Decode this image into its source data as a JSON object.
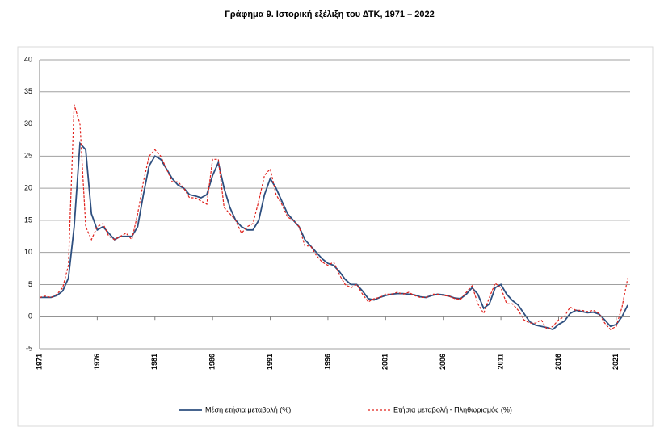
{
  "chart_data": {
    "type": "line",
    "title": "Γράφημα 9. Ιστορική εξέλιξη του ΔΤΚ, 1971 – 2022",
    "x": [
      1971,
      1971.5,
      1972,
      1972.5,
      1973,
      1973.5,
      1974,
      1974.5,
      1975,
      1975.5,
      1976,
      1976.5,
      1977,
      1977.5,
      1978,
      1978.5,
      1979,
      1979.5,
      1980,
      1980.5,
      1981,
      1981.5,
      1982,
      1982.5,
      1983,
      1983.5,
      1984,
      1984.5,
      1985,
      1985.5,
      1986,
      1986.5,
      1987,
      1987.5,
      1988,
      1988.5,
      1989,
      1989.5,
      1990,
      1990.5,
      1991,
      1991.5,
      1992,
      1992.5,
      1993,
      1993.5,
      1994,
      1994.5,
      1995,
      1995.5,
      1996,
      1996.5,
      1997,
      1997.5,
      1998,
      1998.5,
      1999,
      1999.5,
      2000,
      2000.5,
      2001,
      2001.5,
      2002,
      2002.5,
      2003,
      2003.5,
      2004,
      2004.5,
      2005,
      2005.5,
      2006,
      2006.5,
      2007,
      2007.5,
      2008,
      2008.5,
      2009,
      2009.5,
      2010,
      2010.5,
      2011,
      2011.5,
      2012,
      2012.5,
      2013,
      2013.5,
      2014,
      2014.5,
      2015,
      2015.5,
      2016,
      2016.5,
      2017,
      2017.5,
      2018,
      2018.5,
      2019,
      2019.5,
      2020,
      2020.5,
      2021,
      2021.5,
      2022
    ],
    "series": [
      {
        "name": "Μέση ετήσια μεταβολή (%)",
        "color": "#2e4f7f",
        "dash": false,
        "values": [
          3,
          3,
          3,
          3.3,
          4,
          6,
          14,
          27,
          26,
          16,
          13.5,
          14,
          13,
          12,
          12.5,
          12.5,
          12.5,
          14,
          19,
          23.5,
          25,
          24.5,
          23,
          21.5,
          20.5,
          20,
          19,
          18.8,
          18.5,
          19,
          22,
          24,
          20,
          17,
          15,
          14,
          13.5,
          13.5,
          15,
          19,
          21.5,
          20,
          18,
          16,
          15,
          14,
          12,
          11,
          10,
          9,
          8.3,
          8,
          7,
          5.8,
          5,
          5,
          4,
          2.8,
          2.6,
          3,
          3.3,
          3.5,
          3.6,
          3.6,
          3.5,
          3.4,
          3.1,
          3,
          3.3,
          3.5,
          3.4,
          3.2,
          2.9,
          2.8,
          3.5,
          4.5,
          3.5,
          1.3,
          2,
          4.5,
          5,
          3.5,
          2.5,
          1.8,
          0.5,
          -0.8,
          -1.3,
          -1.5,
          -1.7,
          -2,
          -1.2,
          -0.7,
          0.5,
          1,
          0.8,
          0.6,
          0.7,
          0.4,
          -0.5,
          -1.5,
          -1.2,
          0,
          1.8
        ]
      },
      {
        "name": "Ετήσια μεταβολή - Πληθωρισμός (%)",
        "color": "#e0201b",
        "dash": true,
        "values": [
          3,
          3.2,
          3,
          3.5,
          4.5,
          8,
          33,
          30,
          14,
          12,
          14,
          14.5,
          12.5,
          12,
          12.5,
          13,
          12,
          16,
          21,
          25,
          26,
          25,
          23,
          21,
          21,
          20,
          18.5,
          18.5,
          18,
          17.5,
          24.5,
          24.5,
          17,
          16,
          15,
          13,
          14,
          14.5,
          18,
          22,
          23,
          19,
          17.5,
          15.5,
          15,
          14,
          11,
          11,
          9.5,
          8.5,
          8,
          8.5,
          6.5,
          5,
          4.5,
          5,
          3.5,
          2.3,
          2.8,
          3,
          3.5,
          3.5,
          3.8,
          3.5,
          3.8,
          3.3,
          3,
          3,
          3.5,
          3.5,
          3.3,
          3.2,
          2.8,
          2.7,
          3.8,
          4.8,
          2,
          0.5,
          3,
          5.2,
          4.5,
          2,
          2,
          1,
          -0.5,
          -1,
          -1,
          -0.5,
          -2,
          -1.5,
          -0.5,
          0,
          1.5,
          1,
          1,
          0.8,
          1,
          0.5,
          -1,
          -2,
          -1.5,
          1.5,
          6
        ]
      }
    ],
    "xlim": [
      1971,
      2022.2
    ],
    "xticks": [
      1971,
      1976,
      1981,
      1986,
      1991,
      1996,
      2001,
      2006,
      2011,
      2016,
      2021
    ],
    "ylim": [
      -5,
      40
    ],
    "yticks": [
      -5,
      0,
      5,
      10,
      15,
      20,
      25,
      30,
      35,
      40
    ],
    "grid": true
  }
}
